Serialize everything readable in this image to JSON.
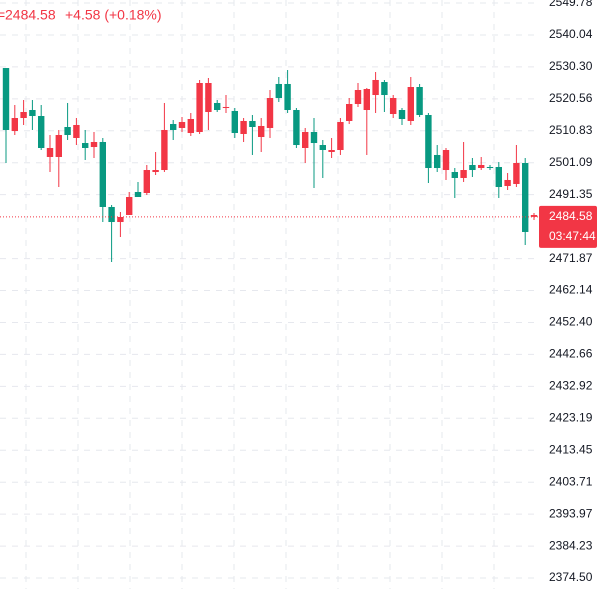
{
  "chart_data": {
    "type": "candlestick",
    "up_color": "#089981",
    "down_color": "#f23645",
    "ylim": [
      2371.16,
      2550.69
    ],
    "yticks": [
      2549.78,
      2540.04,
      {
        "value": 2530.3,
        "label": "2530.30"
      },
      2520.56,
      2510.83,
      2501.09,
      2491.35,
      2471.87,
      2462.14,
      {
        "value": 2452.4,
        "label": "2452.40"
      },
      2442.66,
      2432.92,
      2423.19,
      2413.45,
      2403.71,
      2393.97,
      2384.23,
      {
        "value": 2374.5,
        "label": "2374.50"
      }
    ],
    "grid": true,
    "last_price": 2484.58,
    "change": {
      "value": 4.58,
      "label": "+4.58 (+0.18%)"
    },
    "countdown": "03:47:44",
    "open": [
      2511.07,
      2514.72,
      2516.55,
      2515.33,
      2505.58,
      2505.58,
      2509.54,
      2509.54,
      2512.59,
      2505.58,
      2507.41,
      2487.6,
      2483.02,
      2484.55,
      2490.64,
      2490.64,
      2498.87,
      2498.87,
      2511.07,
      2511.07,
      2513.5,
      2514.42,
      2525.39,
      2525.39,
      2517.16,
      2518.08,
      2510.15,
      2513.81,
      2511.98,
      2512.29,
      2520.82,
      2520.82,
      2517.16,
      2506.49,
      2510.46,
      2507.1,
      2504.97,
      2504.97,
      2513.5,
      2518.99,
      2523.26,
      2523.56,
      2526.31,
      2521.73,
      2520.82,
      2514.42,
      2524.17,
      2515.64,
      2499.48,
      2499.48,
      2504.97,
      2496.44,
      2498.87,
      2498.87,
      2500.4,
      2499.48,
      2493.69,
      2495.83,
      2501.01,
      2479.98,
      2485.16
    ],
    "high": [
      2529.96,
      2518.69,
      2520.21,
      2520.21,
      2518.69,
      2509.54,
      2511.07,
      2519.3,
      2514.72,
      2511.07,
      2510.46,
      2508.63,
      2488.21,
      2486.07,
      2492.17,
      2495.22,
      2500.4,
      2504.36,
      2519.3,
      2514.11,
      2515.03,
      2516.25,
      2526.31,
      2526.92,
      2520.21,
      2521.73,
      2517.77,
      2514.72,
      2515.64,
      2514.72,
      2523.26,
      2527.22,
      2529.35,
      2517.77,
      2511.68,
      2514.72,
      2508.02,
      2508.63,
      2514.72,
      2520.82,
      2525.39,
      2523.87,
      2528.74,
      2526.31,
      2521.73,
      2517.77,
      2527.22,
      2525.09,
      2516.25,
      2506.49,
      2505.58,
      2499.48,
      2507.41,
      2502.53,
      2502.84,
      2500.4,
      2501.31,
      2497.96,
      2506.49,
      2502.53,
      2485.77
    ],
    "low": [
      2501.01,
      2509.54,
      2512.59,
      2511.07,
      2504.97,
      2498.26,
      2493.69,
      2508.02,
      2506.49,
      2501.92,
      2502.53,
      2483.02,
      2470.83,
      2478.45,
      2485.16,
      2490.64,
      2491.25,
      2497.35,
      2498.26,
      2508.02,
      2510.46,
      2509.24,
      2509.85,
      2511.07,
      2516.55,
      2516.25,
      2508.63,
      2507.41,
      2503.45,
      2504.36,
      2508.63,
      2519.6,
      2516.25,
      2505.58,
      2501.01,
      2493.39,
      2496.44,
      2502.53,
      2503.45,
      2512.89,
      2518.08,
      2503.45,
      2516.25,
      2516.55,
      2514.72,
      2512.59,
      2512.59,
      2515.03,
      2494.91,
      2498.26,
      2495.83,
      2490.34,
      2495.22,
      2496.74,
      2498.87,
      2498.87,
      2490.34,
      2492.78,
      2493.69,
      2476.01,
      2483.63
    ],
    "close": [
      2529.96,
      2510.76,
      2514.72,
      2517.16,
      2515.33,
      2502.84,
      2502.84,
      2511.98,
      2508.63,
      2507.1,
      2505.88,
      2507.41,
      2487.6,
      2483.02,
      2485.16,
      2492.17,
      2491.86,
      2498.26,
      2498.87,
      2512.89,
      2511.68,
      2510.15,
      2510.46,
      2516.55,
      2519.3,
      2517.77,
      2516.86,
      2509.85,
      2513.81,
      2508.93,
      2511.68,
      2525.09,
      2525.09,
      2517.16,
      2505.58,
      2510.46,
      2506.49,
      2504.36,
      2504.97,
      2513.81,
      2518.99,
      2517.16,
      2521.73,
      2525.7,
      2515.94,
      2517.16,
      2513.81,
      2524.17,
      2515.64,
      2503.45,
      2498.87,
      2498.26,
      2496.44,
      2500.4,
      2499.48,
      2499.79,
      2499.79,
      2494.0,
      2494.61,
      2501.01,
      2484.58
    ]
  }
}
